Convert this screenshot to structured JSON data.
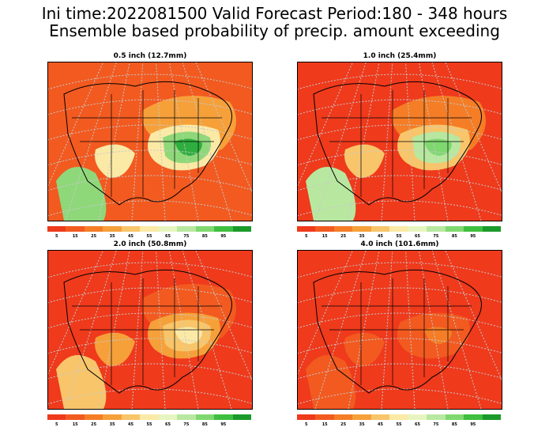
{
  "header": {
    "line1": "Ini time:2022081500  Valid Forecast Period:180 - 348 hours",
    "line2": "Ensemble based probability of precip. amount exceeding"
  },
  "colorbar": {
    "ticks": [
      "5",
      "15",
      "25",
      "35",
      "45",
      "55",
      "65",
      "75",
      "85",
      "95"
    ],
    "colors": [
      "#ef3a1c",
      "#f25a20",
      "#f47d26",
      "#f6a03a",
      "#f8c56a",
      "#fbe9a6",
      "#e6f5c0",
      "#b8e8a0",
      "#7fd86f",
      "#3fbf3f",
      "#1a9a2a"
    ]
  },
  "panels": [
    {
      "title": "0.5 inch (12.7mm)",
      "colors": {
        "base": "#f25a20",
        "mid": "#f6a03a",
        "light": "#fbe9a6",
        "green": "#8fd87a",
        "dark": "#2fae3f"
      }
    },
    {
      "title": "1.0 inch (25.4mm)",
      "colors": {
        "base": "#ef3a1c",
        "mid": "#f47d26",
        "light": "#f8c56a",
        "green": "#b8e8a0",
        "dark": "#7fd86f"
      }
    },
    {
      "title": "2.0 inch (50.8mm)",
      "colors": {
        "base": "#ef3a1c",
        "mid": "#f25a20",
        "light": "#f6a03a",
        "green": "#f8c56a",
        "dark": "#fbe9a6"
      }
    },
    {
      "title": "4.0 inch (101.6mm)",
      "colors": {
        "base": "#ef3a1c",
        "mid": "#ef3a1c",
        "light": "#f25a20",
        "green": "#f25a20",
        "dark": "#f47d26"
      }
    }
  ]
}
